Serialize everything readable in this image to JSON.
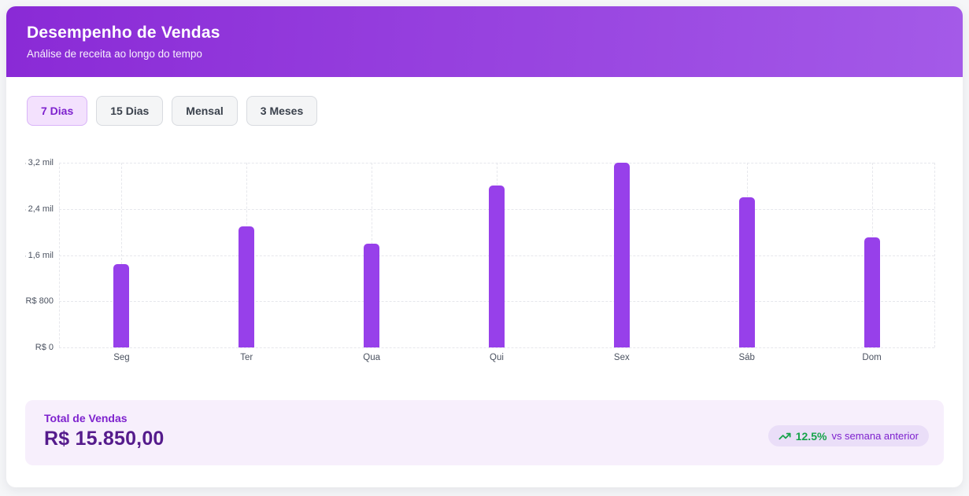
{
  "header": {
    "title": "Desempenho de Vendas",
    "subtitle": "Análise de receita ao longo do tempo"
  },
  "filters": {
    "items": [
      {
        "label": "7 Dias",
        "active": true
      },
      {
        "label": "15 Dias",
        "active": false
      },
      {
        "label": "Mensal",
        "active": false
      },
      {
        "label": "3 Meses",
        "active": false
      }
    ]
  },
  "chart_data": {
    "type": "bar",
    "categories": [
      "Seg",
      "Ter",
      "Qua",
      "Qui",
      "Sex",
      "Sáb",
      "Dom"
    ],
    "values": [
      1450,
      2100,
      1800,
      2800,
      3200,
      2600,
      1900
    ],
    "y_ticks": [
      {
        "value": 0,
        "label": "R$ 0"
      },
      {
        "value": 800,
        "label": "R$ 800"
      },
      {
        "value": 1600,
        "label": "R$ 1,6 mil"
      },
      {
        "value": 2400,
        "label": "R$ 2,4 mil"
      },
      {
        "value": 3200,
        "label": "R$ 3,2 mil"
      }
    ],
    "ylim": [
      0,
      3200
    ],
    "xlabel": "",
    "ylabel": "",
    "title": "",
    "legend": "none",
    "grid": "dashed",
    "bar_color": "#9740ea"
  },
  "summary": {
    "label": "Total de Vendas",
    "value": "R$ 15.850,00",
    "badge": {
      "icon": "trending-up-icon",
      "percent": "12.5%",
      "text": "vs semana anterior"
    }
  },
  "colors": {
    "header_gradient_from": "#8a2ad6",
    "header_gradient_to": "#a45ae8",
    "accent_purple": "#7e22ce",
    "total_purple": "#551b8c",
    "growth_green": "#16a34a",
    "grid_gray": "#e6e7ec"
  }
}
